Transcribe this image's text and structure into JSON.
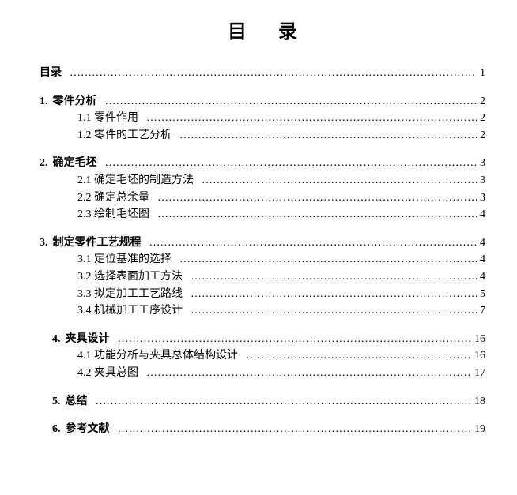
{
  "title": "目录",
  "dotChar": "…",
  "dotRepeat": 60,
  "entries": [
    {
      "num": "",
      "label": "目录",
      "page": "1",
      "bold": true,
      "indent": 0
    },
    {
      "spacer": true
    },
    {
      "num": "1.",
      "label": "零件分析",
      "page": "2",
      "bold": true,
      "indent": 0
    },
    {
      "num": "",
      "label": "1.1 零件作用",
      "page": "2",
      "bold": false,
      "indent": 1
    },
    {
      "num": "",
      "label": "1.2 零件的工艺分析",
      "page": "2",
      "bold": false,
      "indent": 1
    },
    {
      "spacer": true
    },
    {
      "num": "2.",
      "label": "确定毛坯",
      "page": "3",
      "bold": true,
      "indent": 0
    },
    {
      "num": "",
      "label": "2.1 确定毛坯的制造方法",
      "page": "3",
      "bold": false,
      "indent": 1
    },
    {
      "num": "",
      "label": "2.2 确定总余量",
      "page": "3",
      "bold": false,
      "indent": 1
    },
    {
      "num": "",
      "label": "2.3 绘制毛坯图",
      "page": "4",
      "bold": false,
      "indent": 1
    },
    {
      "spacer": true
    },
    {
      "num": "3.",
      "label": "制定零件工艺规程",
      "page": "4",
      "bold": true,
      "indent": 0
    },
    {
      "num": "",
      "label": "3.1 定位基准的选择",
      "page": "4",
      "bold": false,
      "indent": 1
    },
    {
      "num": "",
      "label": "3.2 选择表面加工方法",
      "page": "4",
      "bold": false,
      "indent": 1
    },
    {
      "num": "",
      "label": "3.3 拟定加工工艺路线",
      "page": "5",
      "bold": false,
      "indent": 1
    },
    {
      "num": "",
      "label": "3.4 机械加工工序设计",
      "page": "7",
      "bold": false,
      "indent": 1
    },
    {
      "spacer": true
    },
    {
      "num": "4.",
      "label": "夹具设计",
      "page": "16",
      "bold": true,
      "indent": 4
    },
    {
      "num": "",
      "label": "4.1 功能分析与夹具总体结构设计",
      "page": "16",
      "bold": false,
      "indent": 1
    },
    {
      "num": "",
      "label": "4.2 夹具总图",
      "page": "17",
      "bold": false,
      "indent": 1
    },
    {
      "spacer": true
    },
    {
      "num": "5.",
      "label": "总结",
      "page": "18",
      "bold": true,
      "indent": 4
    },
    {
      "spacer": true
    },
    {
      "num": "6.",
      "label": "参考文献",
      "page": "19",
      "bold": true,
      "indent": 4
    }
  ]
}
